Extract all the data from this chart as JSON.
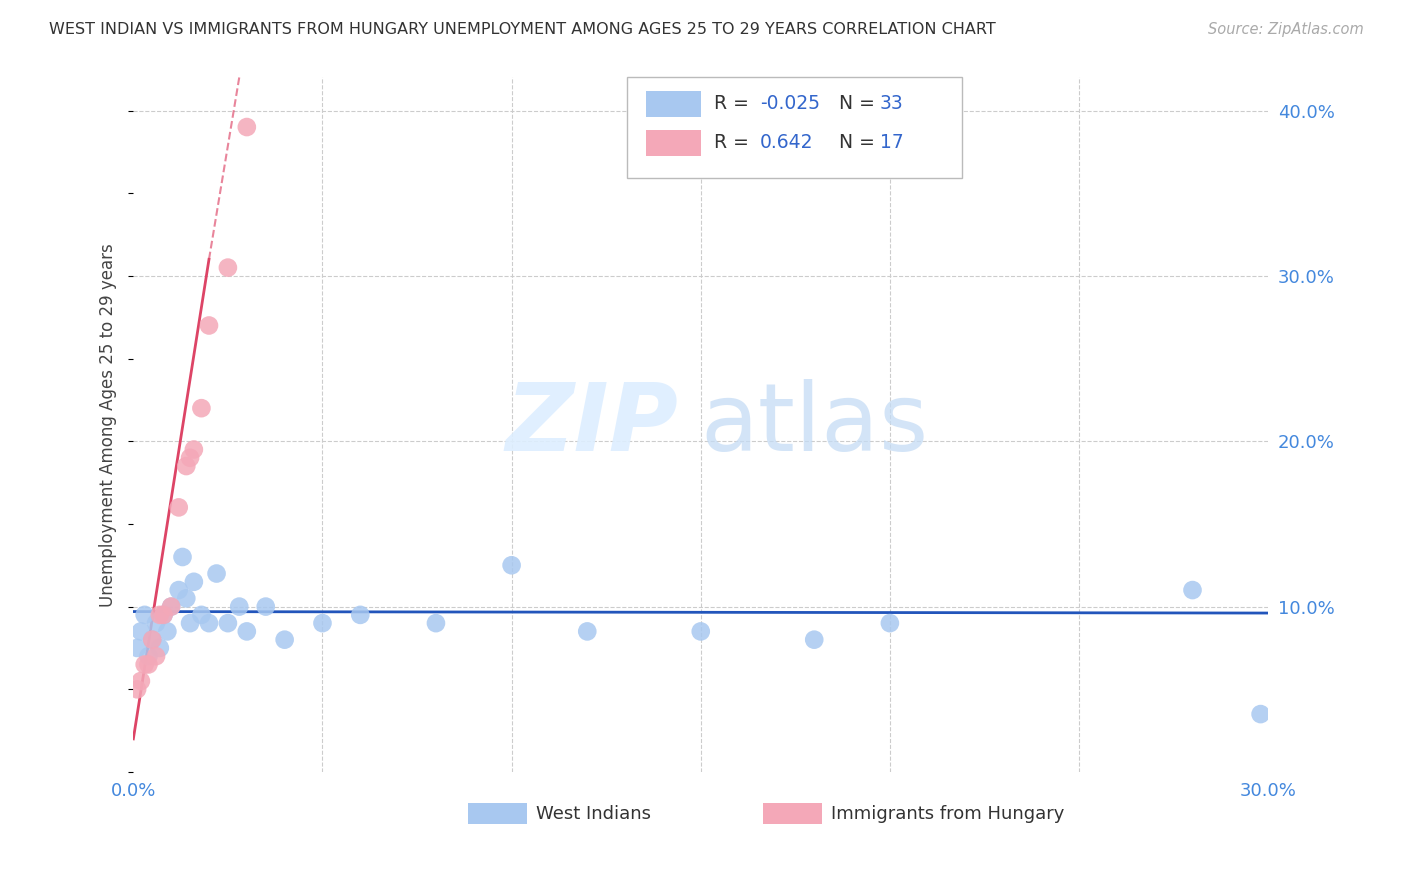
{
  "title": "WEST INDIAN VS IMMIGRANTS FROM HUNGARY UNEMPLOYMENT AMONG AGES 25 TO 29 YEARS CORRELATION CHART",
  "source": "Source: ZipAtlas.com",
  "ylabel": "Unemployment Among Ages 25 to 29 years",
  "xlim": [
    0.0,
    0.3
  ],
  "ylim": [
    0.0,
    0.42
  ],
  "color_blue": "#a8c8f0",
  "color_pink": "#f4a8b8",
  "trendline_blue_color": "#2255bb",
  "trendline_pink_color": "#dd4466",
  "grid_color": "#cccccc",
  "west_indians_x": [
    0.001,
    0.002,
    0.003,
    0.004,
    0.005,
    0.006,
    0.007,
    0.008,
    0.009,
    0.01,
    0.012,
    0.013,
    0.014,
    0.015,
    0.016,
    0.018,
    0.02,
    0.022,
    0.025,
    0.028,
    0.03,
    0.035,
    0.04,
    0.05,
    0.06,
    0.08,
    0.1,
    0.12,
    0.15,
    0.18,
    0.2,
    0.28,
    0.298
  ],
  "west_indians_y": [
    0.075,
    0.085,
    0.095,
    0.07,
    0.08,
    0.09,
    0.075,
    0.095,
    0.085,
    0.1,
    0.11,
    0.13,
    0.105,
    0.09,
    0.115,
    0.095,
    0.09,
    0.12,
    0.09,
    0.1,
    0.085,
    0.1,
    0.08,
    0.09,
    0.095,
    0.09,
    0.125,
    0.085,
    0.085,
    0.08,
    0.09,
    0.11,
    0.035
  ],
  "hungary_x": [
    0.001,
    0.002,
    0.003,
    0.004,
    0.005,
    0.006,
    0.007,
    0.008,
    0.01,
    0.012,
    0.014,
    0.015,
    0.016,
    0.018,
    0.02,
    0.025,
    0.03
  ],
  "hungary_y": [
    0.05,
    0.055,
    0.065,
    0.065,
    0.08,
    0.07,
    0.095,
    0.095,
    0.1,
    0.16,
    0.185,
    0.19,
    0.195,
    0.22,
    0.27,
    0.305,
    0.39
  ],
  "blue_trend_y_intercept": 0.097,
  "blue_trend_slope": -0.003,
  "pink_trend_y_intercept": 0.02,
  "pink_trend_slope": 14.5
}
